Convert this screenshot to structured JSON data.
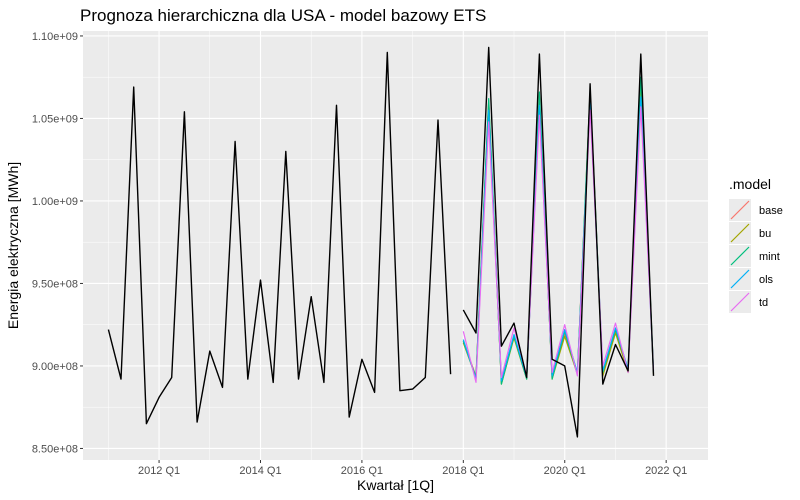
{
  "chart_data": {
    "type": "line",
    "title": "Prognoza hierarchiczna dla USA - model bazowy ETS",
    "xlabel": "Kwartał [1Q]",
    "ylabel": "Energia elektryczna [MWh]",
    "ylim": [
      843000000,
      1103000000
    ],
    "yticks": [
      850000000,
      900000000,
      950000000,
      1000000000,
      1050000000,
      1100000000
    ],
    "ytick_labels": [
      "8.50e+08",
      "9.00e+08",
      "9.50e+08",
      "1.00e+09",
      "1.05e+09",
      "1.10e+09"
    ],
    "xticks": [
      "2012 Q1",
      "2014 Q1",
      "2016 Q1",
      "2018 Q1",
      "2020 Q1",
      "2022 Q1"
    ],
    "x_start": "2011 Q1",
    "grid": true,
    "legend": {
      "title": ".model",
      "placement": "right",
      "entries": [
        "base",
        "bu",
        "mint",
        "ols",
        "td"
      ]
    },
    "colors": {
      "history": "#000000",
      "base": "#F8766D",
      "bu": "#A3A500",
      "mint": "#00BF7D",
      "ols": "#00B0F6",
      "td": "#E76BF3"
    },
    "history": {
      "name": "",
      "start": "2011 Q1",
      "values": [
        922000000,
        892000000,
        1069000000,
        865000000,
        881000000,
        893000000,
        1054000000,
        866000000,
        909000000,
        887000000,
        1036000000,
        892000000,
        952000000,
        890000000,
        1030000000,
        892000000,
        942000000,
        890000000,
        1058000000,
        869000000,
        904000000,
        884000000,
        1090000000,
        885000000,
        886000000,
        893000000,
        1049000000,
        895000000
      ]
    },
    "test_actual": {
      "name": "",
      "start": "2018 Q1",
      "values": [
        934000000,
        920000000,
        1093000000,
        912000000,
        926000000,
        893000000,
        1089000000,
        904000000,
        900000000,
        857000000,
        1071000000,
        889000000,
        913000000,
        897000000,
        1089000000,
        894000000
      ]
    },
    "series": [
      {
        "name": "base",
        "start": "2018 Q1",
        "values": [
          915000000,
          894000000,
          1061000000,
          890000000,
          918000000,
          893000000,
          1064000000,
          893000000,
          919000000,
          896000000,
          1066000000,
          895000000,
          921000000,
          897000000,
          1074000000,
          896000000
        ]
      },
      {
        "name": "bu",
        "start": "2018 Q1",
        "values": [
          914000000,
          893000000,
          1060000000,
          889000000,
          917000000,
          892000000,
          1063000000,
          892000000,
          918000000,
          895000000,
          1065000000,
          894000000,
          920000000,
          896000000,
          1073000000,
          895000000
        ]
      },
      {
        "name": "mint",
        "start": "2018 Q1",
        "values": [
          915000000,
          893000000,
          1062000000,
          889000000,
          918000000,
          892000000,
          1066000000,
          892000000,
          921000000,
          895000000,
          1067000000,
          896000000,
          922000000,
          898000000,
          1075000000,
          897000000
        ]
      },
      {
        "name": "ols",
        "start": "2018 Q1",
        "values": [
          916000000,
          892000000,
          1055000000,
          891000000,
          919000000,
          893000000,
          1058000000,
          894000000,
          922000000,
          896000000,
          1060000000,
          897000000,
          923000000,
          898000000,
          1063000000,
          896000000
        ]
      },
      {
        "name": "td",
        "start": "2018 Q1",
        "values": [
          921000000,
          890000000,
          1048000000,
          893000000,
          923000000,
          894000000,
          1052000000,
          896000000,
          925000000,
          894000000,
          1055000000,
          900000000,
          926000000,
          896000000,
          1057000000,
          897000000
        ]
      }
    ]
  }
}
